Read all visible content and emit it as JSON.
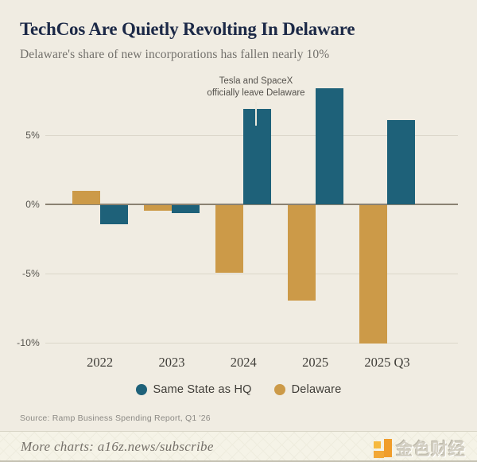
{
  "header": {
    "title": "TechCos Are Quietly Revolting In Delaware",
    "subtitle": "Delaware's share of new incorporations has fallen nearly 10%"
  },
  "annotation": {
    "line1": "Tesla and SpaceX",
    "line2": "officially leave Delaware"
  },
  "chart_data": {
    "type": "bar",
    "categories": [
      "2022",
      "2023",
      "2024",
      "2025",
      "2025 Q3"
    ],
    "series": [
      {
        "name": "Same State as HQ",
        "color": "#1e6179",
        "values": [
          -1.4,
          -0.6,
          6.9,
          8.4,
          6.1
        ]
      },
      {
        "name": "Delaware",
        "color": "#cc9a48",
        "values": [
          1.0,
          -0.4,
          -4.9,
          -6.9,
          -10.0
        ]
      }
    ],
    "bar_order_in_group": [
      "Delaware",
      "Same State as HQ"
    ],
    "title": "TechCos Are Quietly Revolting In Delaware",
    "subtitle": "Delaware's share of new incorporations has fallen nearly 10%",
    "xlabel": "",
    "ylabel": "",
    "y_ticks": [
      "5%",
      "0%",
      "-5%",
      "-10%"
    ],
    "y_tick_values": [
      5,
      0,
      -5,
      -10
    ],
    "ylim": [
      -10.5,
      9.5
    ],
    "grid": true,
    "legend_position": "bottom",
    "annotation_text": "Tesla and SpaceX officially leave Delaware",
    "annotation_target": {
      "category": "2024",
      "series": "Same State as HQ"
    }
  },
  "legend": {
    "items": [
      {
        "label": "Same State as HQ",
        "color": "#1e6179"
      },
      {
        "label": "Delaware",
        "color": "#cc9a48"
      }
    ]
  },
  "source": "Source: Ramp Business Spending Report, Q1 '26",
  "footer": {
    "more_charts": "More charts: a16z.news/subscribe",
    "brand": "金色财经"
  },
  "colors": {
    "background": "#f0ece2",
    "title": "#1c2947",
    "subtitle": "#73716c",
    "teal": "#1e6179",
    "gold": "#cc9a48",
    "gridline": "#dcd7ca",
    "zero_axis": "#8a8272",
    "footer_background": "#f5f3e7",
    "logo_orange": "#f09d2b"
  }
}
